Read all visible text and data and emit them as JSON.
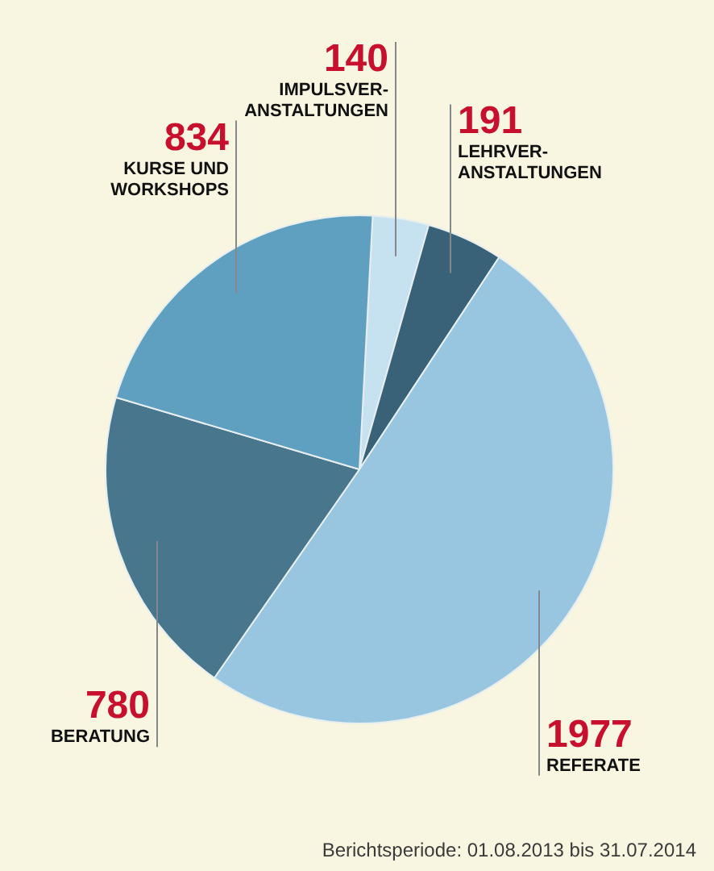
{
  "chart_data": {
    "type": "pie",
    "categories": [
      "IMPULSVER-ANSTALTUNGEN",
      "LEHRVER-ANSTALTUNGEN",
      "REFERATE",
      "BERATUNG",
      "KURSE UND WORKSHOPS"
    ],
    "values": [
      140,
      191,
      1977,
      780,
      834
    ],
    "colors": [
      "#c6e1ef",
      "#396177",
      "#98c5df",
      "#48768d",
      "#5fa0c1"
    ],
    "data_labels": true,
    "legend": false,
    "annotations": [
      "Berichtsperiode: 01.08.2013 bis 31.07.2014"
    ]
  }
}
